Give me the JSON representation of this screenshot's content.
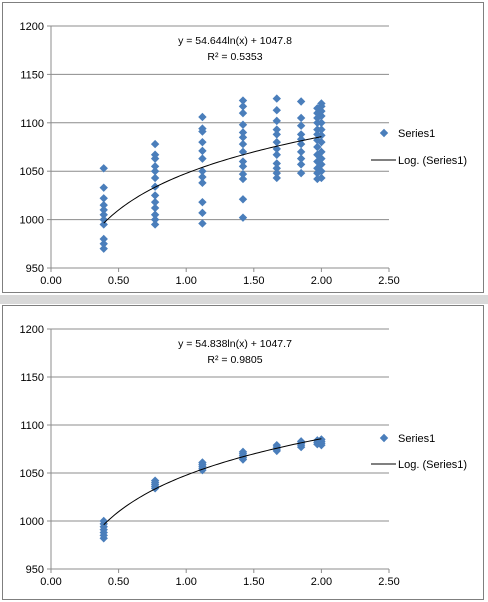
{
  "colors": {
    "marker": "#4a7ebb",
    "trend": "#000000",
    "grid": "#8c8c8c",
    "background": "#ffffff"
  },
  "chart_data": [
    {
      "type": "scatter",
      "title": "",
      "xlabel": "",
      "ylabel": "",
      "xlim": [
        0,
        2.5
      ],
      "ylim": [
        950,
        1200
      ],
      "x_ticks": [
        "0.00",
        "0.50",
        "1.00",
        "1.50",
        "2.00",
        "2.50"
      ],
      "y_ticks": [
        "950",
        "1000",
        "1050",
        "1100",
        "1150",
        "1200"
      ],
      "grid": "horizontal major gridlines",
      "legend_position": "right",
      "series": [
        {
          "name": "Series1",
          "marker": "diamond",
          "points": [
            [
              0.39,
              970
            ],
            [
              0.39,
              975
            ],
            [
              0.39,
              980
            ],
            [
              0.39,
              995
            ],
            [
              0.39,
              1000
            ],
            [
              0.39,
              1005
            ],
            [
              0.39,
              1010
            ],
            [
              0.39,
              1015
            ],
            [
              0.39,
              1022
            ],
            [
              0.39,
              1033
            ],
            [
              0.39,
              1053
            ],
            [
              0.77,
              995
            ],
            [
              0.77,
              1000
            ],
            [
              0.77,
              1005
            ],
            [
              0.77,
              1012
            ],
            [
              0.77,
              1018
            ],
            [
              0.77,
              1025
            ],
            [
              0.77,
              1034
            ],
            [
              0.77,
              1043
            ],
            [
              0.77,
              1050
            ],
            [
              0.77,
              1055
            ],
            [
              0.77,
              1063
            ],
            [
              0.77,
              1067
            ],
            [
              0.77,
              1078
            ],
            [
              1.12,
              996
            ],
            [
              1.12,
              1007
            ],
            [
              1.12,
              1018
            ],
            [
              1.12,
              1038
            ],
            [
              1.12,
              1044
            ],
            [
              1.12,
              1050
            ],
            [
              1.12,
              1063
            ],
            [
              1.12,
              1071
            ],
            [
              1.12,
              1080
            ],
            [
              1.12,
              1091
            ],
            [
              1.12,
              1094
            ],
            [
              1.12,
              1106
            ],
            [
              1.42,
              1002
            ],
            [
              1.42,
              1021
            ],
            [
              1.42,
              1042
            ],
            [
              1.42,
              1047
            ],
            [
              1.42,
              1055
            ],
            [
              1.42,
              1060
            ],
            [
              1.42,
              1070
            ],
            [
              1.42,
              1078
            ],
            [
              1.42,
              1085
            ],
            [
              1.42,
              1090
            ],
            [
              1.42,
              1098
            ],
            [
              1.42,
              1110
            ],
            [
              1.42,
              1117
            ],
            [
              1.42,
              1123
            ],
            [
              1.67,
              1043
            ],
            [
              1.67,
              1048
            ],
            [
              1.67,
              1053
            ],
            [
              1.67,
              1058
            ],
            [
              1.67,
              1067
            ],
            [
              1.67,
              1073
            ],
            [
              1.67,
              1080
            ],
            [
              1.67,
              1088
            ],
            [
              1.67,
              1093
            ],
            [
              1.67,
              1102
            ],
            [
              1.67,
              1113
            ],
            [
              1.67,
              1125
            ],
            [
              1.85,
              1048
            ],
            [
              1.85,
              1057
            ],
            [
              1.85,
              1063
            ],
            [
              1.85,
              1070
            ],
            [
              1.85,
              1078
            ],
            [
              1.85,
              1083
            ],
            [
              1.85,
              1088
            ],
            [
              1.85,
              1097
            ],
            [
              1.85,
              1105
            ],
            [
              1.85,
              1122
            ],
            [
              1.97,
              1042
            ],
            [
              1.97,
              1048
            ],
            [
              1.97,
              1053
            ],
            [
              1.97,
              1060
            ],
            [
              1.97,
              1067
            ],
            [
              1.97,
              1075
            ],
            [
              1.97,
              1082
            ],
            [
              1.97,
              1088
            ],
            [
              1.97,
              1093
            ],
            [
              1.97,
              1100
            ],
            [
              1.97,
              1105
            ],
            [
              1.97,
              1110
            ],
            [
              1.97,
              1115
            ],
            [
              2.0,
              1043
            ],
            [
              2.0,
              1050
            ],
            [
              2.0,
              1057
            ],
            [
              2.0,
              1063
            ],
            [
              2.0,
              1070
            ],
            [
              2.0,
              1080
            ],
            [
              2.0,
              1087
            ],
            [
              2.0,
              1093
            ],
            [
              2.0,
              1100
            ],
            [
              2.0,
              1107
            ],
            [
              2.0,
              1112
            ],
            [
              2.0,
              1117
            ],
            [
              2.0,
              1120
            ]
          ]
        }
      ],
      "trendline": {
        "name": "Log. (Series1)",
        "type": "logarithmic",
        "a": 54.644,
        "b": 1047.8,
        "x_range": [
          0.39,
          2.0
        ],
        "equation_label": "y = 54.644ln(x) + 1047.8",
        "r2_label": "R² = 0.5353"
      }
    },
    {
      "type": "scatter",
      "title": "",
      "xlabel": "",
      "ylabel": "",
      "xlim": [
        0,
        2.5
      ],
      "ylim": [
        950,
        1200
      ],
      "x_ticks": [
        "0.00",
        "0.50",
        "1.00",
        "1.50",
        "2.00",
        "2.50"
      ],
      "y_ticks": [
        "950",
        "1000",
        "1050",
        "1100",
        "1150",
        "1200"
      ],
      "grid": "horizontal major gridlines",
      "legend_position": "right",
      "series": [
        {
          "name": "Series1",
          "marker": "diamond",
          "points": [
            [
              0.39,
              982
            ],
            [
              0.39,
              985
            ],
            [
              0.39,
              988
            ],
            [
              0.39,
              991
            ],
            [
              0.39,
              994
            ],
            [
              0.39,
              997
            ],
            [
              0.39,
              1000
            ],
            [
              0.77,
              1034
            ],
            [
              0.77,
              1036
            ],
            [
              0.77,
              1038
            ],
            [
              0.77,
              1040
            ],
            [
              0.77,
              1042
            ],
            [
              1.12,
              1053
            ],
            [
              1.12,
              1055
            ],
            [
              1.12,
              1057
            ],
            [
              1.12,
              1059
            ],
            [
              1.12,
              1061
            ],
            [
              1.42,
              1064
            ],
            [
              1.42,
              1066
            ],
            [
              1.42,
              1068
            ],
            [
              1.42,
              1070
            ],
            [
              1.42,
              1072
            ],
            [
              1.67,
              1073
            ],
            [
              1.67,
              1075
            ],
            [
              1.67,
              1077
            ],
            [
              1.67,
              1079
            ],
            [
              1.85,
              1077
            ],
            [
              1.85,
              1079
            ],
            [
              1.85,
              1081
            ],
            [
              1.85,
              1083
            ],
            [
              1.97,
              1080
            ],
            [
              1.97,
              1082
            ],
            [
              1.97,
              1084
            ],
            [
              2.0,
              1079
            ],
            [
              2.0,
              1081
            ],
            [
              2.0,
              1083
            ],
            [
              2.0,
              1085
            ]
          ]
        }
      ],
      "trendline": {
        "name": "Log. (Series1)",
        "type": "logarithmic",
        "a": 54.838,
        "b": 1047.7,
        "x_range": [
          0.39,
          2.0
        ],
        "equation_label": "y = 54.838ln(x) + 1047.7",
        "r2_label": "R² = 0.9805"
      }
    }
  ]
}
